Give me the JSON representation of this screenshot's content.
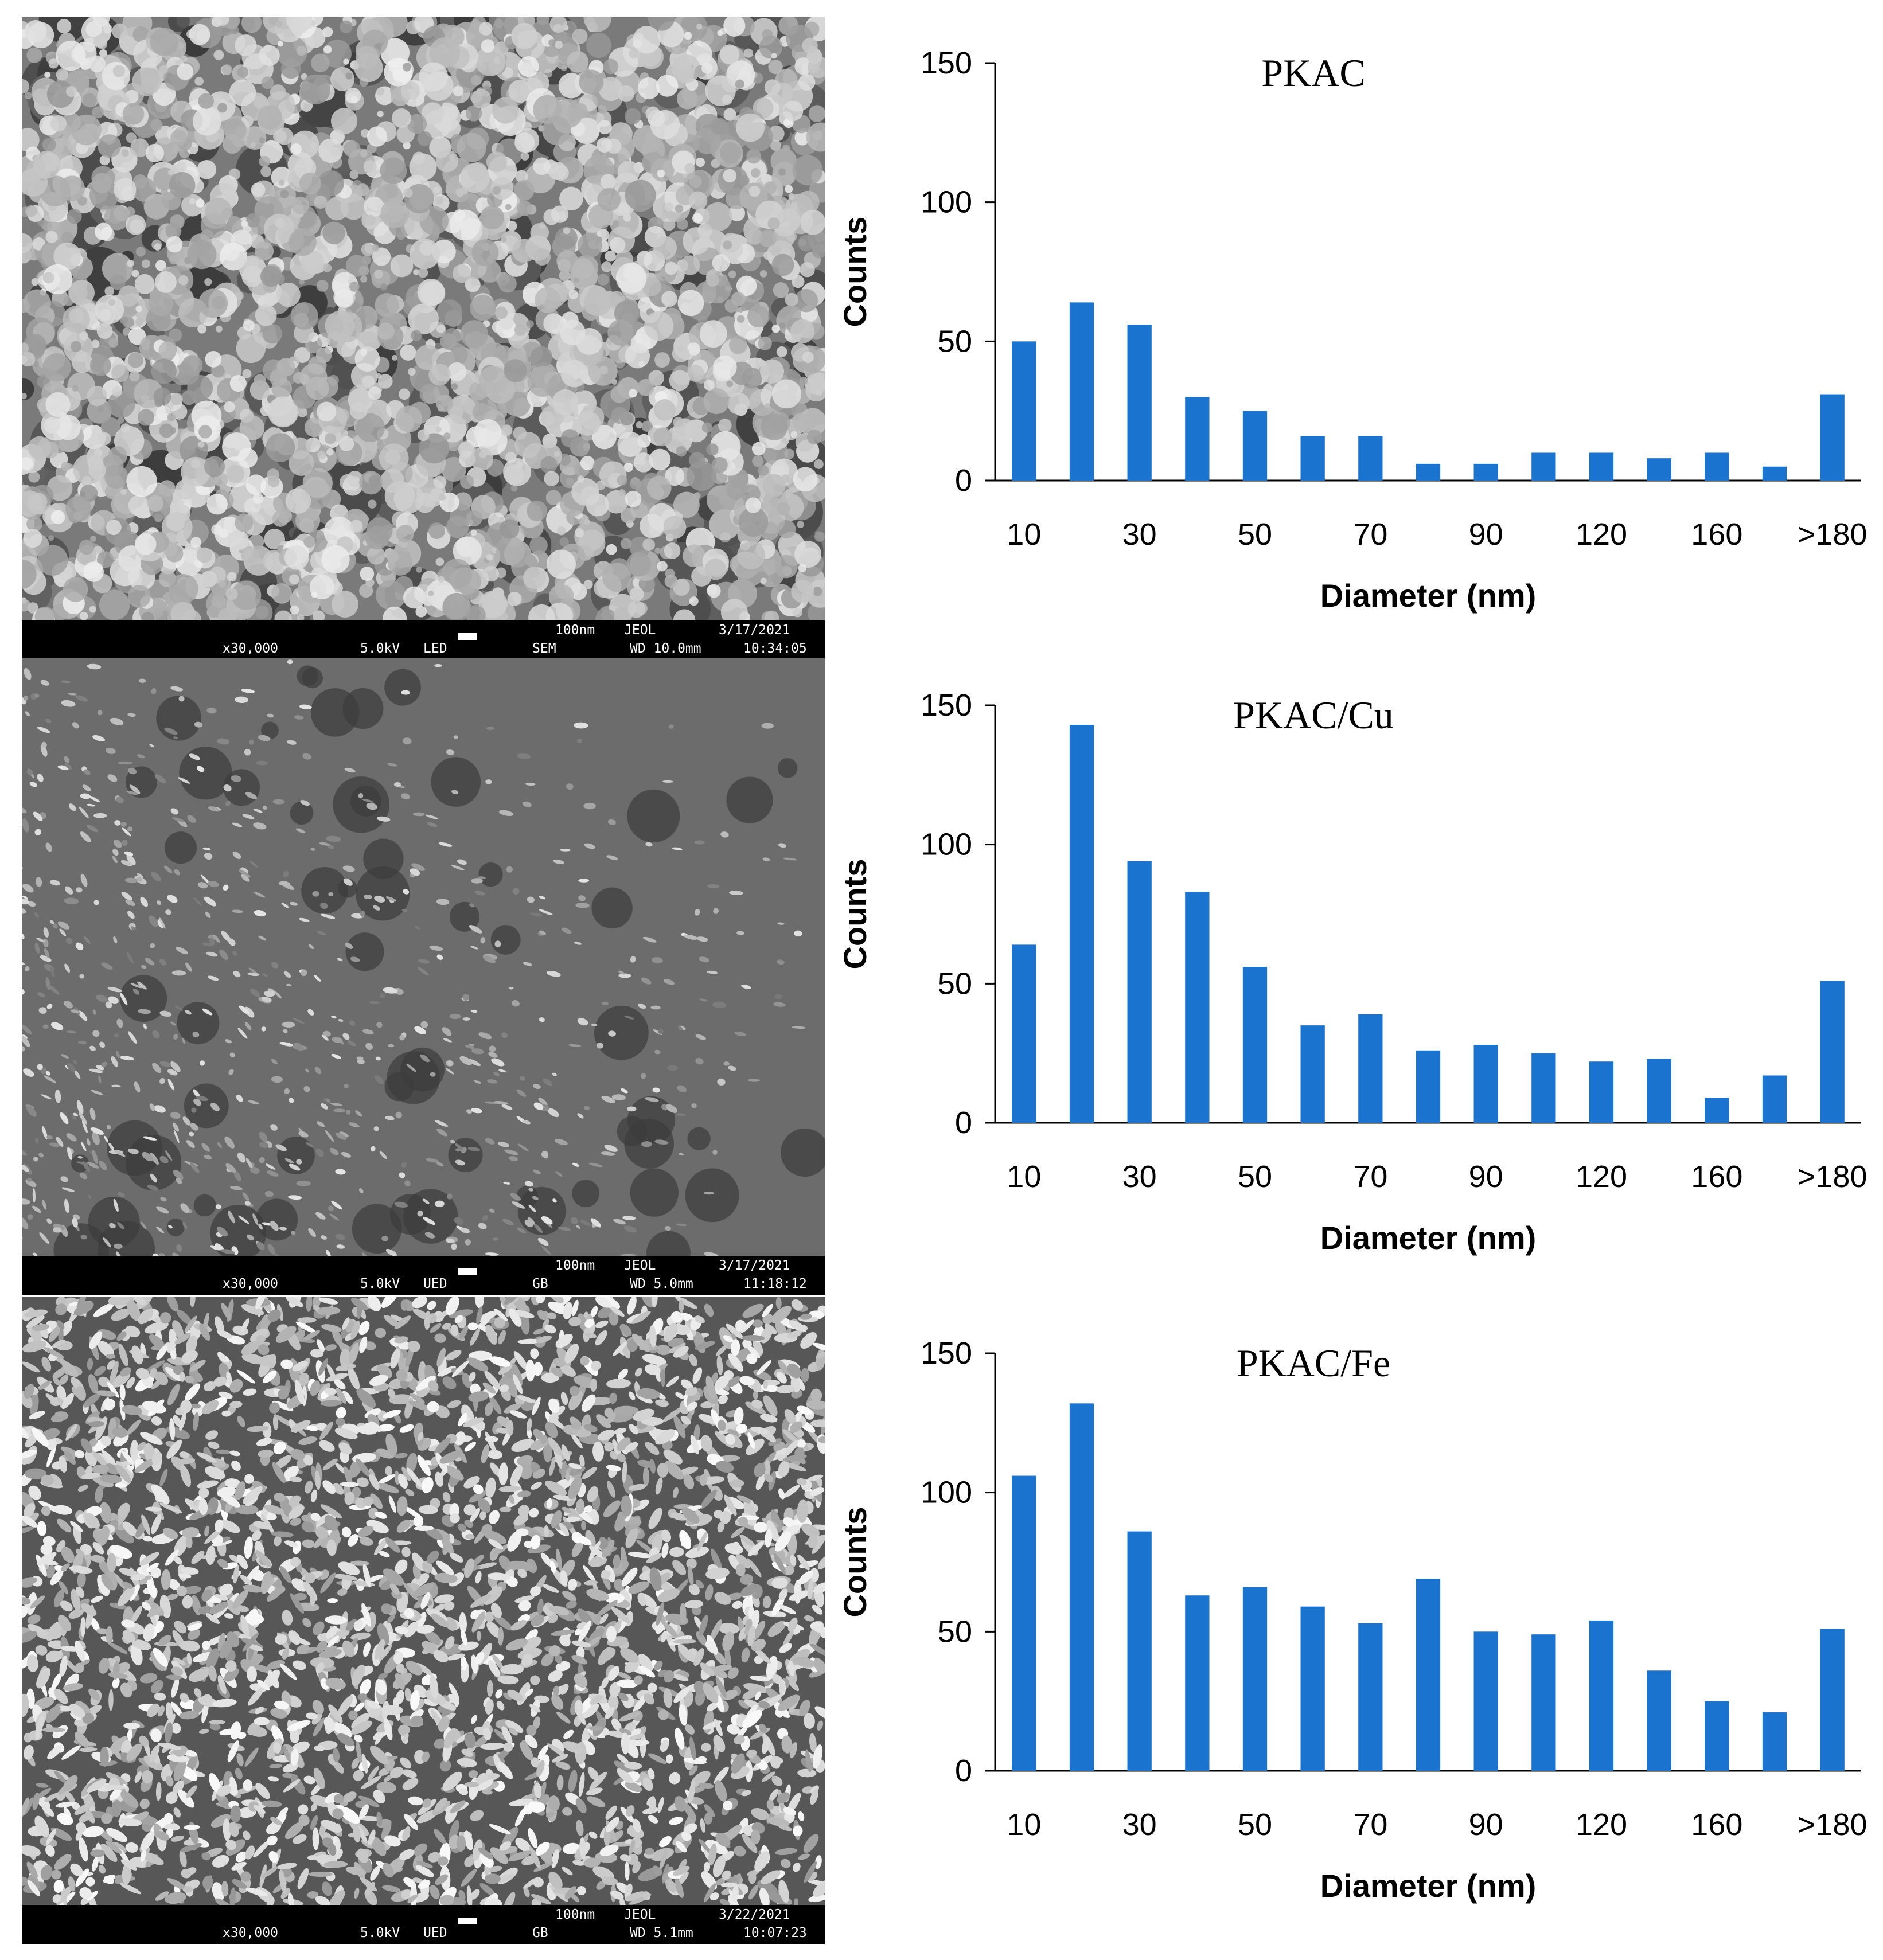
{
  "sem_images": [
    {
      "texture": "agglomerate",
      "scalebar": {
        "magnification": "x30,000",
        "voltage": "5.0kV",
        "detector": "LED",
        "mode": "SEM",
        "scale": "100nm",
        "maker": "JEOL",
        "working_distance": "WD 10.0mm",
        "date": "3/17/2021",
        "time": "10:34:05"
      }
    },
    {
      "texture": "flakes",
      "scalebar": {
        "magnification": "x30,000",
        "voltage": "5.0kV",
        "detector": "UED",
        "mode": "GB",
        "scale": "100nm",
        "maker": "JEOL",
        "working_distance": "WD 5.0mm",
        "date": "3/17/2021",
        "time": "11:18:12"
      }
    },
    {
      "texture": "crystals",
      "scalebar": {
        "magnification": "x30,000",
        "voltage": "5.0kV",
        "detector": "UED",
        "mode": "GB",
        "scale": "100nm",
        "maker": "JEOL",
        "working_distance": "WD 5.1mm",
        "date": "3/22/2021",
        "time": "10:07:23"
      }
    }
  ],
  "chart_data": [
    {
      "type": "bar",
      "title": "PKAC",
      "xlabel": "Diameter (nm)",
      "ylabel": "Counts",
      "ylim": [
        0,
        150
      ],
      "yticks": [
        0,
        50,
        100,
        150
      ],
      "categories": [
        "10",
        "20",
        "30",
        "40",
        "50",
        "60",
        "70",
        "80",
        "90",
        "100",
        "120",
        "140",
        "160",
        "180",
        ">180"
      ],
      "xtick_labels": [
        "10",
        "30",
        "50",
        "70",
        "90",
        "120",
        "160",
        ">180"
      ],
      "values": [
        50,
        64,
        56,
        30,
        25,
        16,
        16,
        6,
        6,
        10,
        10,
        8,
        10,
        5,
        31
      ],
      "color": "#1a74cf",
      "grid": false
    },
    {
      "type": "bar",
      "title": "PKAC/Cu",
      "xlabel": "Diameter (nm)",
      "ylabel": "Counts",
      "ylim": [
        0,
        150
      ],
      "yticks": [
        0,
        50,
        100,
        150
      ],
      "categories": [
        "10",
        "20",
        "30",
        "40",
        "50",
        "60",
        "70",
        "80",
        "90",
        "100",
        "120",
        "140",
        "160",
        "180",
        ">180"
      ],
      "xtick_labels": [
        "10",
        "30",
        "50",
        "70",
        "90",
        "120",
        "160",
        ">180"
      ],
      "values": [
        64,
        143,
        94,
        83,
        56,
        35,
        39,
        26,
        28,
        25,
        22,
        23,
        9,
        17,
        51
      ],
      "color": "#1a74cf",
      "grid": false
    },
    {
      "type": "bar",
      "title": "PKAC/Fe",
      "xlabel": "Diameter (nm)",
      "ylabel": "Counts",
      "ylim": [
        0,
        150
      ],
      "yticks": [
        0,
        50,
        100,
        150
      ],
      "categories": [
        "10",
        "20",
        "30",
        "40",
        "50",
        "60",
        "70",
        "80",
        "90",
        "100",
        "120",
        "140",
        "160",
        "180",
        ">180"
      ],
      "xtick_labels": [
        "10",
        "30",
        "50",
        "70",
        "90",
        "120",
        "160",
        ">180"
      ],
      "values": [
        106,
        132,
        86,
        63,
        66,
        59,
        53,
        69,
        50,
        49,
        54,
        36,
        25,
        21,
        51
      ],
      "color": "#1a74cf",
      "grid": false
    }
  ]
}
